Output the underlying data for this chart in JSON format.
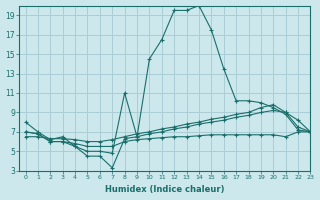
{
  "xlabel": "Humidex (Indice chaleur)",
  "bg_color": "#cce8ed",
  "grid_color": "#aacdd5",
  "line_color": "#1a6e6a",
  "xlim": [
    -0.5,
    23
  ],
  "ylim": [
    3,
    20
  ],
  "xticks": [
    0,
    1,
    2,
    3,
    4,
    5,
    6,
    7,
    8,
    9,
    10,
    11,
    12,
    13,
    14,
    15,
    16,
    17,
    18,
    19,
    20,
    21,
    22,
    23
  ],
  "yticks": [
    3,
    5,
    7,
    9,
    11,
    13,
    15,
    17,
    19
  ],
  "series": [
    {
      "x": [
        0,
        1,
        2,
        3,
        4,
        5,
        6,
        7,
        8,
        9,
        10,
        11,
        12,
        13,
        14,
        15,
        16,
        17,
        18,
        19,
        20,
        21,
        22,
        23
      ],
      "y": [
        8.0,
        7.0,
        6.2,
        6.5,
        5.5,
        5.0,
        5.0,
        4.8,
        11.0,
        6.5,
        14.5,
        16.5,
        19.5,
        19.5,
        20.0,
        17.5,
        13.5,
        10.2,
        10.2,
        10.0,
        9.5,
        8.8,
        7.2,
        7.0
      ]
    },
    {
      "x": [
        0,
        1,
        2,
        3,
        4,
        5,
        6,
        7,
        8,
        9,
        10,
        11,
        12,
        13,
        14,
        15,
        16,
        17,
        18,
        19,
        20,
        21,
        22,
        23
      ],
      "y": [
        6.5,
        6.5,
        6.3,
        6.3,
        6.2,
        6.0,
        6.0,
        6.2,
        6.5,
        6.8,
        7.0,
        7.3,
        7.5,
        7.8,
        8.0,
        8.3,
        8.5,
        8.8,
        9.0,
        9.5,
        9.8,
        9.0,
        8.2,
        7.0
      ]
    },
    {
      "x": [
        0,
        1,
        2,
        3,
        4,
        5,
        6,
        7,
        8,
        9,
        10,
        11,
        12,
        13,
        14,
        15,
        16,
        17,
        18,
        19,
        20,
        21,
        22,
        23
      ],
      "y": [
        7.0,
        6.8,
        6.0,
        6.0,
        5.5,
        4.5,
        4.5,
        3.3,
        6.3,
        6.5,
        6.8,
        7.0,
        7.3,
        7.5,
        7.8,
        8.0,
        8.2,
        8.5,
        8.7,
        9.0,
        9.2,
        9.0,
        7.5,
        7.0
      ]
    },
    {
      "x": [
        0,
        1,
        2,
        3,
        4,
        5,
        6,
        7,
        8,
        9,
        10,
        11,
        12,
        13,
        14,
        15,
        16,
        17,
        18,
        19,
        20,
        21,
        22,
        23
      ],
      "y": [
        7.0,
        6.8,
        6.0,
        6.0,
        5.8,
        5.5,
        5.5,
        5.5,
        6.0,
        6.2,
        6.3,
        6.4,
        6.5,
        6.5,
        6.6,
        6.7,
        6.7,
        6.7,
        6.7,
        6.7,
        6.7,
        6.5,
        7.0,
        7.0
      ]
    }
  ]
}
